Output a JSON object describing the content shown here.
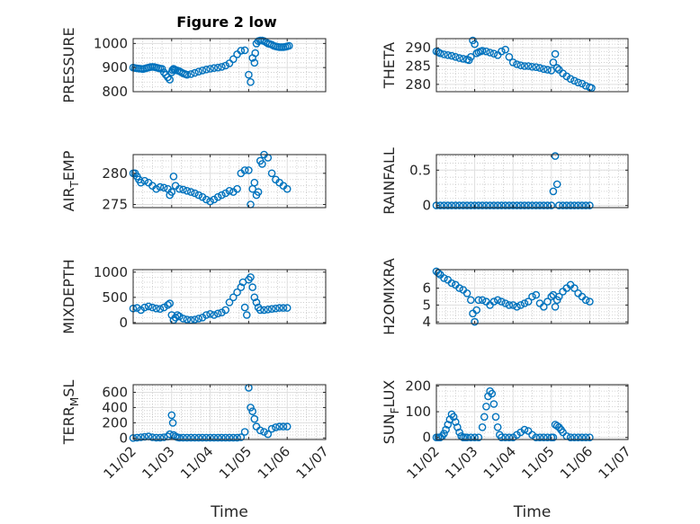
{
  "figure_title": "Figure 2 low",
  "colors": {
    "marker": "#0072BD",
    "axes": "#262626",
    "grid": "#dfdfdf",
    "minor_grid": "#c8c8c8"
  },
  "chart_data": [
    {
      "type": "scatter",
      "id": "pressure",
      "ylabel": "PRESSURE",
      "title": "Figure 2 low",
      "ylim": [
        800,
        1020
      ],
      "yticks": [
        800,
        900,
        1000
      ],
      "ytick_labels": [
        "800",
        "900",
        "1000"
      ],
      "xtick_labels": [],
      "xlabel": "",
      "x": [
        0,
        0.05,
        0.1,
        0.15,
        0.2,
        0.25,
        0.3,
        0.35,
        0.4,
        0.45,
        0.5,
        0.55,
        0.6,
        0.65,
        0.7,
        0.75,
        0.8,
        0.85,
        0.9,
        0.95,
        1.0,
        1.02,
        1.05,
        1.07,
        1.1,
        1.15,
        1.2,
        1.25,
        1.3,
        1.35,
        1.4,
        1.5,
        1.6,
        1.7,
        1.8,
        1.9,
        2.0,
        2.1,
        2.2,
        2.3,
        2.4,
        2.5,
        2.6,
        2.7,
        2.8,
        2.9,
        3.0,
        3.05,
        3.1,
        3.15,
        3.17,
        3.2,
        3.25,
        3.3,
        3.35,
        3.4,
        3.45,
        3.5,
        3.55,
        3.6,
        3.65,
        3.7,
        3.75,
        3.8,
        3.85,
        3.9,
        3.95,
        4.0,
        4.05
      ],
      "y": [
        900,
        898,
        897,
        896,
        895,
        894,
        896,
        898,
        900,
        902,
        903,
        902,
        900,
        898,
        896,
        895,
        880,
        870,
        860,
        850,
        880,
        890,
        895,
        893,
        890,
        888,
        885,
        880,
        876,
        873,
        870,
        873,
        878,
        883,
        888,
        892,
        895,
        898,
        900,
        903,
        908,
        918,
        935,
        955,
        970,
        972,
        870,
        840,
        940,
        920,
        960,
        1000,
        1010,
        1012,
        1012,
        1010,
        1005,
        1000,
        998,
        995,
        990,
        988,
        986,
        985,
        985,
        985,
        986,
        988,
        990
      ],
      "xlim": [
        0,
        5
      ]
    },
    {
      "type": "scatter",
      "id": "theta",
      "ylabel": "THETA",
      "ylim": [
        278,
        292.5
      ],
      "yticks": [
        280,
        285,
        290
      ],
      "ytick_labels": [
        "280",
        "285",
        "290"
      ],
      "xtick_labels": [],
      "xlabel": "",
      "x": [
        0,
        0.05,
        0.1,
        0.2,
        0.3,
        0.4,
        0.5,
        0.6,
        0.7,
        0.8,
        0.85,
        0.9,
        0.95,
        1.0,
        1.05,
        1.1,
        1.15,
        1.2,
        1.3,
        1.4,
        1.5,
        1.6,
        1.7,
        1.8,
        1.9,
        2.0,
        2.1,
        2.2,
        2.3,
        2.4,
        2.5,
        2.6,
        2.7,
        2.8,
        2.9,
        3.0,
        3.05,
        3.1,
        3.15,
        3.2,
        3.3,
        3.4,
        3.5,
        3.6,
        3.7,
        3.8,
        3.9,
        4.0,
        4.05
      ],
      "y": [
        289,
        288.8,
        288.5,
        288.2,
        288,
        287.8,
        287.5,
        287.2,
        287,
        286.8,
        286.6,
        287.5,
        292,
        291,
        288.5,
        288.8,
        289,
        289.2,
        289,
        288.7,
        288.4,
        288,
        289,
        289.5,
        287.5,
        286,
        285.5,
        285.2,
        285,
        285,
        284.8,
        284.7,
        284.5,
        284.2,
        284,
        283.8,
        286,
        288.3,
        284.5,
        284,
        283,
        282.2,
        281.5,
        281,
        280.5,
        280.2,
        279.6,
        279.2,
        279
      ]
    },
    {
      "type": "scatter",
      "id": "air_temp",
      "ylabel": "AIR_TEMP",
      "ylim": [
        274.5,
        283
      ],
      "yticks": [
        275,
        280
      ],
      "ytick_labels": [
        "275",
        "280"
      ],
      "xtick_labels": [],
      "xlabel": "",
      "x": [
        0,
        0.05,
        0.1,
        0.15,
        0.2,
        0.3,
        0.4,
        0.5,
        0.6,
        0.7,
        0.8,
        0.9,
        0.95,
        1.0,
        1.05,
        1.1,
        1.2,
        1.3,
        1.4,
        1.5,
        1.6,
        1.7,
        1.8,
        1.9,
        2.0,
        2.1,
        2.2,
        2.3,
        2.4,
        2.5,
        2.6,
        2.7,
        2.8,
        2.9,
        3.0,
        3.05,
        3.1,
        3.15,
        3.2,
        3.25,
        3.3,
        3.35,
        3.4,
        3.5,
        3.6,
        3.7,
        3.8,
        3.9,
        4.0
      ],
      "y": [
        280,
        280,
        279.5,
        279,
        278.5,
        278.8,
        278.5,
        278,
        277.5,
        277.8,
        277.7,
        277.5,
        276.5,
        277,
        279.5,
        278,
        277.5,
        277.4,
        277.2,
        277,
        276.8,
        276.5,
        276.2,
        275.8,
        275.5,
        275.8,
        276.2,
        276.5,
        276.8,
        277.2,
        277,
        277.5,
        280,
        280.5,
        280.5,
        275,
        277.5,
        278.5,
        276.5,
        277,
        282,
        281.5,
        283,
        282.5,
        280,
        279,
        278.5,
        278,
        277.5
      ]
    },
    {
      "type": "scatter",
      "id": "rainfall",
      "ylabel": "RAINFALL",
      "ylim": [
        -0.03,
        0.72
      ],
      "yticks": [
        0,
        0.5
      ],
      "ytick_labels": [
        "0",
        "0.5"
      ],
      "xtick_labels": [],
      "xlabel": "",
      "x": [
        0,
        0.1,
        0.2,
        0.3,
        0.4,
        0.5,
        0.6,
        0.7,
        0.8,
        0.9,
        1.0,
        1.1,
        1.2,
        1.3,
        1.4,
        1.5,
        1.6,
        1.7,
        1.8,
        1.9,
        2.0,
        2.1,
        2.2,
        2.3,
        2.4,
        2.5,
        2.6,
        2.7,
        2.8,
        2.9,
        3.0,
        3.05,
        3.1,
        3.15,
        3.2,
        3.3,
        3.4,
        3.5,
        3.6,
        3.7,
        3.8,
        3.9,
        4.0
      ],
      "y": [
        0,
        0,
        0,
        0,
        0,
        0,
        0,
        0,
        0,
        0,
        0,
        0,
        0,
        0,
        0,
        0,
        0,
        0,
        0,
        0,
        0,
        0,
        0,
        0,
        0,
        0,
        0,
        0,
        0,
        0,
        0,
        0.2,
        0.7,
        0.3,
        0,
        0,
        0,
        0,
        0,
        0,
        0,
        0,
        0
      ]
    },
    {
      "type": "scatter",
      "id": "mixdepth",
      "ylabel": "MIXDEPTH",
      "ylim": [
        -20,
        1050
      ],
      "yticks": [
        0,
        500,
        1000
      ],
      "ytick_labels": [
        "0",
        "500",
        "1000"
      ],
      "xtick_labels": [],
      "xlabel": "",
      "x": [
        0,
        0.1,
        0.2,
        0.3,
        0.4,
        0.5,
        0.6,
        0.7,
        0.8,
        0.9,
        0.95,
        1.0,
        1.05,
        1.1,
        1.15,
        1.2,
        1.3,
        1.4,
        1.5,
        1.6,
        1.7,
        1.8,
        1.9,
        2.0,
        2.1,
        2.2,
        2.3,
        2.4,
        2.5,
        2.6,
        2.7,
        2.8,
        2.85,
        2.9,
        2.95,
        3.0,
        3.05,
        3.1,
        3.15,
        3.2,
        3.25,
        3.3,
        3.4,
        3.5,
        3.6,
        3.7,
        3.8,
        3.9,
        4.0
      ],
      "y": [
        280,
        290,
        250,
        300,
        320,
        300,
        280,
        270,
        300,
        350,
        380,
        150,
        50,
        100,
        150,
        120,
        80,
        60,
        50,
        60,
        80,
        100,
        150,
        170,
        150,
        180,
        200,
        250,
        400,
        500,
        600,
        700,
        800,
        300,
        150,
        850,
        900,
        700,
        500,
        400,
        300,
        250,
        250,
        260,
        270,
        280,
        290,
        290,
        290
      ]
    },
    {
      "type": "scatter",
      "id": "h2omixra",
      "ylabel": "H2OMIXRA",
      "ylim": [
        3.9,
        7.1
      ],
      "yticks": [
        4,
        5,
        6
      ],
      "ytick_labels": [
        "4",
        "5",
        "6"
      ],
      "xtick_labels": [],
      "xlabel": "",
      "x": [
        0,
        0.05,
        0.1,
        0.2,
        0.3,
        0.4,
        0.5,
        0.6,
        0.7,
        0.8,
        0.9,
        0.95,
        1.0,
        1.05,
        1.1,
        1.2,
        1.3,
        1.4,
        1.5,
        1.6,
        1.7,
        1.8,
        1.9,
        2.0,
        2.1,
        2.2,
        2.3,
        2.4,
        2.5,
        2.6,
        2.7,
        2.8,
        2.9,
        3.0,
        3.05,
        3.1,
        3.15,
        3.2,
        3.3,
        3.4,
        3.5,
        3.6,
        3.7,
        3.8,
        3.9,
        4.0
      ],
      "y": [
        7,
        6.9,
        6.8,
        6.6,
        6.5,
        6.3,
        6.2,
        6.0,
        5.9,
        5.7,
        5.3,
        4.5,
        4.0,
        4.7,
        5.3,
        5.3,
        5.2,
        5.0,
        5.2,
        5.3,
        5.2,
        5.1,
        5.0,
        5.0,
        4.9,
        5.0,
        5.1,
        5.2,
        5.5,
        5.6,
        5.1,
        4.9,
        5.2,
        5.5,
        5.6,
        4.9,
        5.3,
        5.5,
        5.8,
        6.0,
        6.2,
        6.0,
        5.7,
        5.5,
        5.3,
        5.2
      ]
    },
    {
      "type": "scatter",
      "id": "terr_msl",
      "ylabel": "TERR_MSL",
      "ylim": [
        -20,
        700
      ],
      "yticks": [
        0,
        200,
        400,
        600
      ],
      "ytick_labels": [
        "0",
        "200",
        "400",
        "600"
      ],
      "xtick_labels": [
        "11/02",
        "11/03",
        "11/04",
        "11/05",
        "11/06",
        "11/07"
      ],
      "xlabel": "Time",
      "x": [
        0,
        0.1,
        0.2,
        0.3,
        0.4,
        0.5,
        0.6,
        0.7,
        0.8,
        0.9,
        0.95,
        1.0,
        1.03,
        1.05,
        1.1,
        1.15,
        1.2,
        1.3,
        1.4,
        1.5,
        1.6,
        1.7,
        1.8,
        1.9,
        2.0,
        2.1,
        2.2,
        2.3,
        2.4,
        2.5,
        2.6,
        2.7,
        2.8,
        2.9,
        3.0,
        3.05,
        3.1,
        3.15,
        3.2,
        3.3,
        3.4,
        3.5,
        3.6,
        3.7,
        3.8,
        3.9,
        4.0
      ],
      "y": [
        0,
        5,
        10,
        15,
        20,
        10,
        5,
        5,
        10,
        20,
        50,
        300,
        200,
        40,
        20,
        10,
        5,
        5,
        5,
        5,
        5,
        5,
        5,
        5,
        5,
        5,
        5,
        5,
        5,
        5,
        5,
        5,
        10,
        80,
        660,
        400,
        350,
        250,
        150,
        100,
        80,
        50,
        120,
        140,
        150,
        150,
        150
      ]
    },
    {
      "type": "scatter",
      "id": "sun_flux",
      "ylabel": "SUN_FLUX",
      "ylim": [
        -8,
        205
      ],
      "yticks": [
        0,
        100,
        200
      ],
      "ytick_labels": [
        "0",
        "100",
        "200"
      ],
      "xtick_labels": [
        "11/02",
        "11/03",
        "11/04",
        "11/05",
        "11/06",
        "11/07"
      ],
      "xlabel": "Time",
      "x": [
        0,
        0.05,
        0.1,
        0.15,
        0.2,
        0.25,
        0.3,
        0.35,
        0.4,
        0.45,
        0.5,
        0.55,
        0.6,
        0.65,
        0.7,
        0.75,
        0.8,
        0.9,
        1.0,
        1.1,
        1.2,
        1.25,
        1.3,
        1.35,
        1.4,
        1.45,
        1.5,
        1.55,
        1.6,
        1.65,
        1.7,
        1.8,
        1.9,
        2.0,
        2.1,
        2.2,
        2.3,
        2.4,
        2.5,
        2.6,
        2.7,
        2.8,
        2.9,
        3.0,
        3.05,
        3.1,
        3.15,
        3.2,
        3.25,
        3.3,
        3.4,
        3.5,
        3.6,
        3.7,
        3.8,
        3.9,
        4.0
      ],
      "y": [
        0,
        0,
        0,
        5,
        15,
        30,
        50,
        70,
        90,
        80,
        60,
        40,
        20,
        5,
        0,
        0,
        0,
        0,
        0,
        0,
        40,
        80,
        120,
        160,
        180,
        170,
        130,
        80,
        40,
        10,
        0,
        0,
        0,
        0,
        10,
        20,
        30,
        25,
        10,
        0,
        0,
        0,
        0,
        0,
        0,
        50,
        45,
        40,
        30,
        20,
        5,
        0,
        0,
        0,
        0,
        0,
        0
      ]
    }
  ]
}
